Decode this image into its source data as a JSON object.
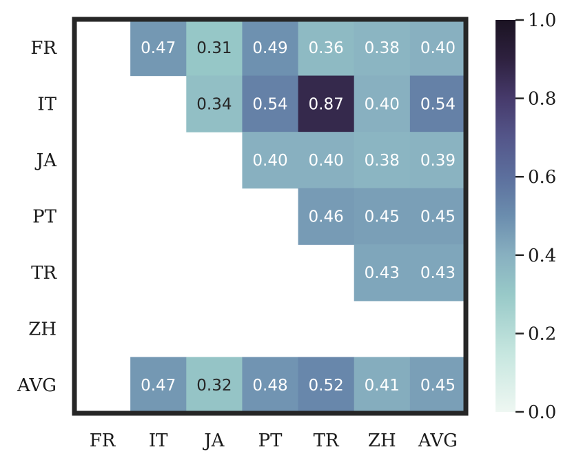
{
  "chart_data": {
    "type": "heatmap",
    "title": "",
    "xlabel": "",
    "ylabel": "",
    "x_categories": [
      "FR",
      "IT",
      "JA",
      "PT",
      "TR",
      "ZH",
      "AVG"
    ],
    "y_categories": [
      "FR",
      "IT",
      "JA",
      "PT",
      "TR",
      "ZH",
      "AVG"
    ],
    "cells": [
      {
        "row": "FR",
        "col": "IT",
        "value": 0.47,
        "label": "0.47"
      },
      {
        "row": "FR",
        "col": "JA",
        "value": 0.31,
        "label": "0.31"
      },
      {
        "row": "FR",
        "col": "PT",
        "value": 0.49,
        "label": "0.49"
      },
      {
        "row": "FR",
        "col": "TR",
        "value": 0.36,
        "label": "0.36"
      },
      {
        "row": "FR",
        "col": "ZH",
        "value": 0.38,
        "label": "0.38"
      },
      {
        "row": "FR",
        "col": "AVG",
        "value": 0.4,
        "label": "0.40"
      },
      {
        "row": "IT",
        "col": "JA",
        "value": 0.34,
        "label": "0.34"
      },
      {
        "row": "IT",
        "col": "PT",
        "value": 0.54,
        "label": "0.54"
      },
      {
        "row": "IT",
        "col": "TR",
        "value": 0.87,
        "label": "0.87"
      },
      {
        "row": "IT",
        "col": "ZH",
        "value": 0.4,
        "label": "0.40"
      },
      {
        "row": "IT",
        "col": "AVG",
        "value": 0.54,
        "label": "0.54"
      },
      {
        "row": "JA",
        "col": "PT",
        "value": 0.4,
        "label": "0.40"
      },
      {
        "row": "JA",
        "col": "TR",
        "value": 0.4,
        "label": "0.40"
      },
      {
        "row": "JA",
        "col": "ZH",
        "value": 0.38,
        "label": "0.38"
      },
      {
        "row": "JA",
        "col": "AVG",
        "value": 0.39,
        "label": "0.39"
      },
      {
        "row": "PT",
        "col": "TR",
        "value": 0.46,
        "label": "0.46"
      },
      {
        "row": "PT",
        "col": "ZH",
        "value": 0.45,
        "label": "0.45"
      },
      {
        "row": "PT",
        "col": "AVG",
        "value": 0.45,
        "label": "0.45"
      },
      {
        "row": "TR",
        "col": "ZH",
        "value": 0.43,
        "label": "0.43"
      },
      {
        "row": "TR",
        "col": "AVG",
        "value": 0.43,
        "label": "0.43"
      },
      {
        "row": "AVG",
        "col": "IT",
        "value": 0.47,
        "label": "0.47"
      },
      {
        "row": "AVG",
        "col": "JA",
        "value": 0.32,
        "label": "0.32"
      },
      {
        "row": "AVG",
        "col": "PT",
        "value": 0.48,
        "label": "0.48"
      },
      {
        "row": "AVG",
        "col": "TR",
        "value": 0.52,
        "label": "0.52"
      },
      {
        "row": "AVG",
        "col": "ZH",
        "value": 0.41,
        "label": "0.41"
      },
      {
        "row": "AVG",
        "col": "AVG",
        "value": 0.45,
        "label": "0.45"
      }
    ],
    "colorbar": {
      "range": [
        0.0,
        1.0
      ],
      "ticks": [
        0.0,
        0.2,
        0.4,
        0.6,
        0.8,
        1.0
      ],
      "tick_labels": [
        "0.0",
        "0.2",
        "0.4",
        "0.6",
        "0.8",
        "1.0"
      ]
    },
    "colormap": [
      [
        0.0,
        "#eef7f2"
      ],
      [
        0.15,
        "#c6e6df"
      ],
      [
        0.3,
        "#98c9c8"
      ],
      [
        0.4,
        "#88b0c0"
      ],
      [
        0.5,
        "#6b8dae"
      ],
      [
        0.6,
        "#5c6f9d"
      ],
      [
        0.7,
        "#54568a"
      ],
      [
        0.8,
        "#463a6b"
      ],
      [
        0.9,
        "#2e213f"
      ],
      [
        1.0,
        "#1b1322"
      ]
    ],
    "frame_color": "#262626",
    "dark_text_color": "#262626",
    "light_text_color": "#ffffff",
    "text_dark_below": 0.345
  }
}
